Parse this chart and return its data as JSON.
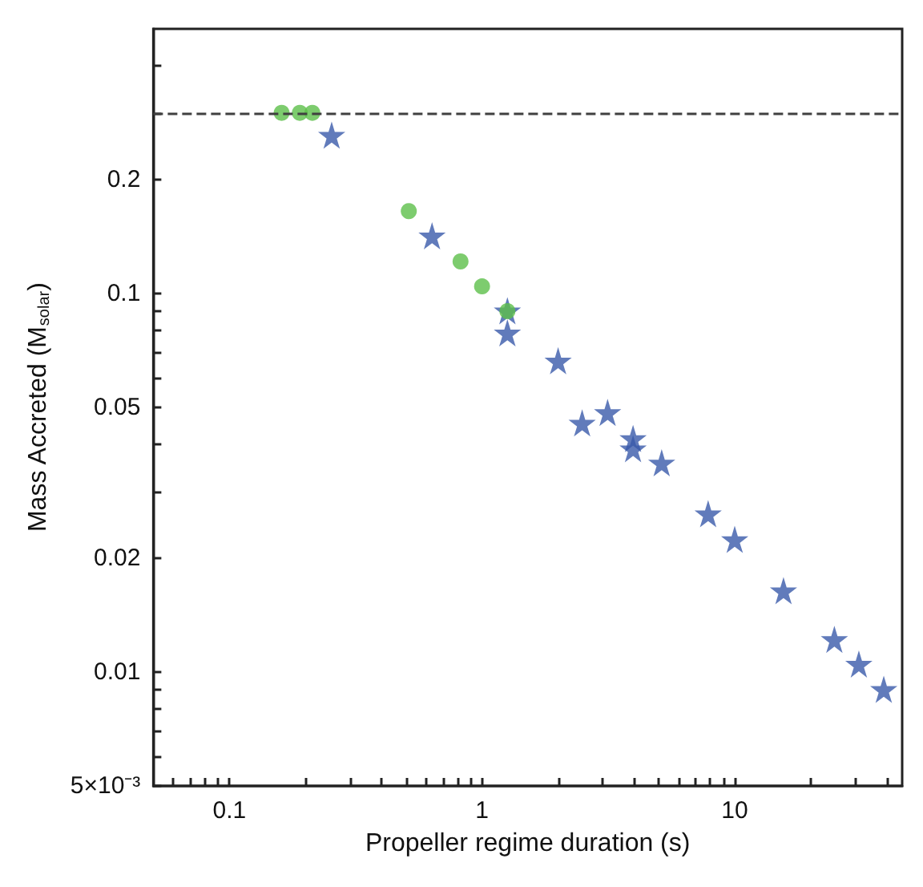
{
  "chart_data": {
    "type": "scatter",
    "xlabel": "Propeller regime duration (s)",
    "ylabel": "Mass Accreted (M$_{solar}$)",
    "log": "xy",
    "grid": false,
    "xlim": [
      0.05,
      46
    ],
    "ylim": [
      0.005,
      0.5
    ],
    "xticks": [
      {
        "value": 0.06,
        "label": null
      },
      {
        "value": 0.07,
        "label": null
      },
      {
        "value": 0.08,
        "label": null
      },
      {
        "value": 0.09,
        "label": null
      },
      0.1,
      {
        "value": 0.2,
        "label": null
      },
      {
        "value": 0.3,
        "label": null
      },
      {
        "value": 0.4,
        "label": null
      },
      {
        "value": 0.5,
        "label": null
      },
      {
        "value": 0.6,
        "label": null
      },
      {
        "value": 0.7,
        "label": null
      },
      {
        "value": 0.8,
        "label": null
      },
      {
        "value": 0.9,
        "label": null
      },
      1,
      {
        "value": 2,
        "label": null
      },
      {
        "value": 3,
        "label": null
      },
      {
        "value": 4,
        "label": null
      },
      {
        "value": 5,
        "label": null
      },
      {
        "value": 6,
        "label": null
      },
      {
        "value": 7,
        "label": null
      },
      {
        "value": 8,
        "label": null
      },
      {
        "value": 9,
        "label": null
      },
      10,
      {
        "value": 20,
        "label": null
      },
      {
        "value": 30,
        "label": null
      },
      {
        "value": 40,
        "label": null
      }
    ],
    "yticks": [
      {
        "value": 0.005,
        "label": "5×10⁻³"
      },
      {
        "value": 0.006,
        "label": null
      },
      {
        "value": 0.007,
        "label": null
      },
      {
        "value": 0.008,
        "label": null
      },
      {
        "value": 0.009,
        "label": null
      },
      0.01,
      0.02,
      {
        "value": 0.03,
        "label": null
      },
      {
        "value": 0.04,
        "label": null
      },
      0.05,
      {
        "value": 0.06,
        "label": null
      },
      {
        "value": 0.07,
        "label": null
      },
      {
        "value": 0.08,
        "label": null
      },
      {
        "value": 0.09,
        "label": null
      },
      0.1,
      0.2,
      {
        "value": 0.3,
        "label": null
      },
      {
        "value": 0.4,
        "label": null
      }
    ],
    "ref_lines": [
      {
        "axis": "y",
        "value": 0.3,
        "color": "#404040",
        "line_style": "dashed"
      }
    ],
    "series": [
      {
        "color": "#5cbf4a",
        "marker": "circle",
        "x": [
          0.161,
          0.19,
          0.213,
          0.513,
          0.822,
          1.0,
          1.26
        ],
        "values": [
          0.3,
          0.3,
          0.3,
          0.165,
          0.1215,
          0.1044,
          0.0898
        ]
      },
      {
        "color": "#3a5aaa",
        "marker": "star",
        "x": [
          0.254,
          0.634,
          1.26,
          1.26,
          2.0,
          2.49,
          3.14,
          3.96,
          3.96,
          5.14,
          7.85,
          10.0,
          15.6,
          24.8,
          31.0,
          38.9
        ],
        "values": [
          0.262,
          0.142,
          0.09,
          0.0787,
          0.0664,
          0.0455,
          0.0485,
          0.0414,
          0.0389,
          0.0357,
          0.0262,
          0.0224,
          0.0164,
          0.0122,
          0.0105,
          0.009
        ]
      }
    ]
  }
}
